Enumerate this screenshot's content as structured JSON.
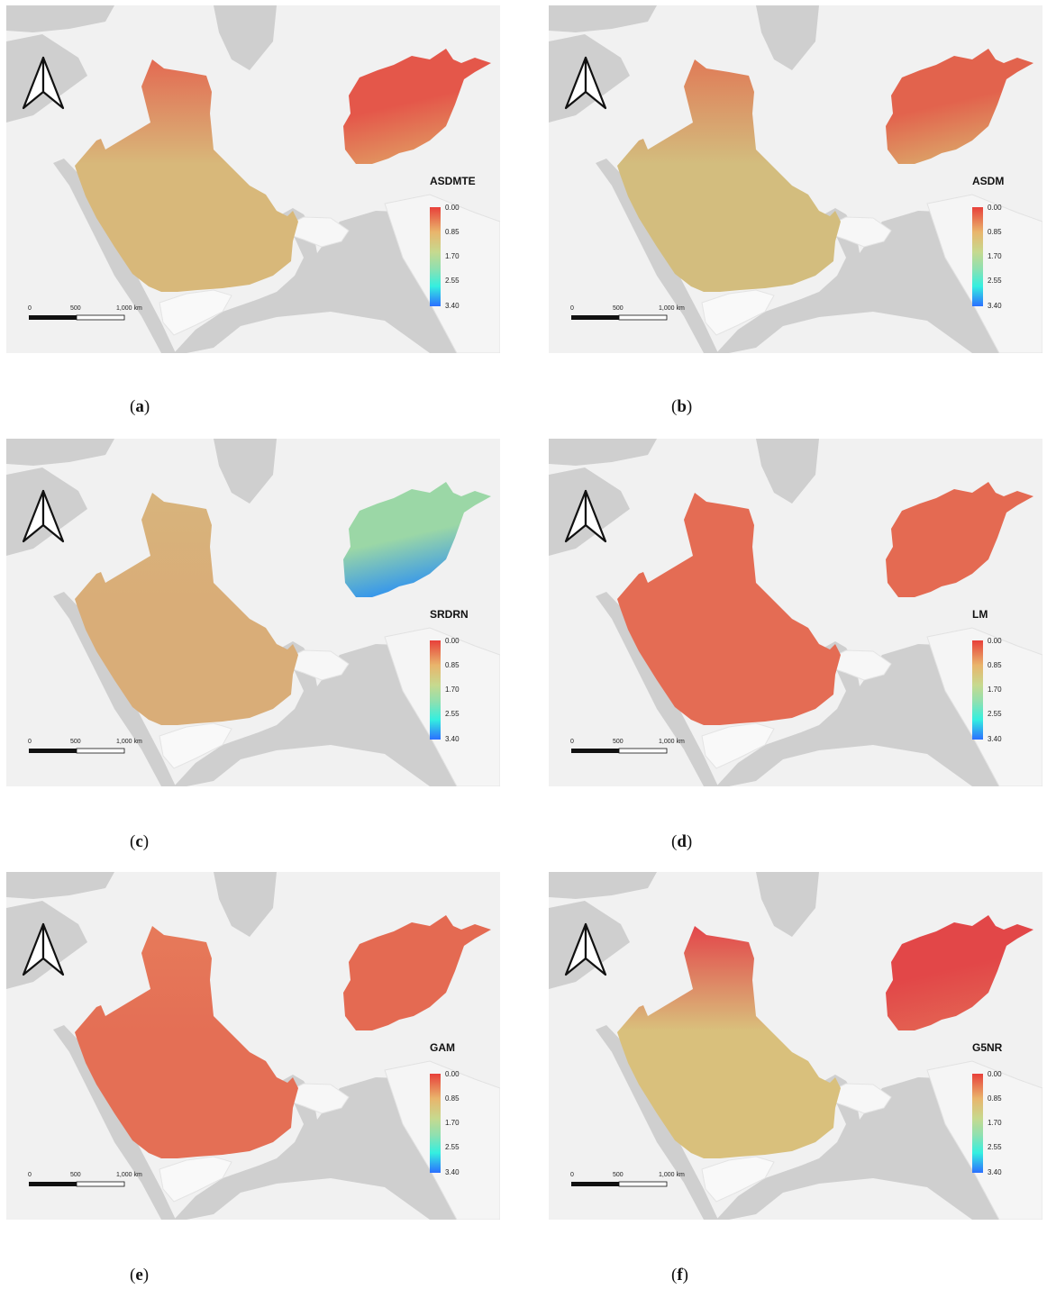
{
  "legend": {
    "ticks": [
      "0.00",
      "0.85",
      "1.70",
      "2.55",
      "3.40"
    ]
  },
  "scalebar": {
    "labels": [
      "0",
      "500",
      "1,000 km"
    ]
  },
  "panels": [
    {
      "id": "a",
      "title": "ASDMTE",
      "caption_letter": "a",
      "colors": {
        "arabia": "#d8b87a",
        "arabia_north": "#e36a52",
        "afghanistan": "#e4574a",
        "afghanistan_south": "#e19560"
      }
    },
    {
      "id": "b",
      "title": "ASDM",
      "caption_letter": "b",
      "colors": {
        "arabia": "#d3bd7e",
        "arabia_north": "#e07b57",
        "afghanistan": "#e2634d",
        "afghanistan_south": "#dca267"
      }
    },
    {
      "id": "c",
      "title": "SRDRN",
      "caption_letter": "c",
      "colors": {
        "arabia": "#d9ad78",
        "arabia_north": "#d8b47c",
        "afghanistan": "#9bd7a6",
        "afghanistan_south": "#2f92f0"
      }
    },
    {
      "id": "d",
      "title": "LM",
      "caption_letter": "d",
      "colors": {
        "arabia": "#e46c54",
        "arabia_north": "#e46c54",
        "afghanistan": "#e46a52",
        "afghanistan_south": "#e46a52"
      }
    },
    {
      "id": "e",
      "title": "GAM",
      "caption_letter": "e",
      "colors": {
        "arabia": "#e46f55",
        "arabia_north": "#e67a5a",
        "afghanistan": "#e46a52",
        "afghanistan_south": "#e46a52"
      }
    },
    {
      "id": "f",
      "title": "G5NR",
      "caption_letter": "f",
      "colors": {
        "arabia": "#d9c07c",
        "arabia_north": "#e3454a",
        "afghanistan": "#e24748",
        "afghanistan_south": "#e36252"
      }
    }
  ]
}
